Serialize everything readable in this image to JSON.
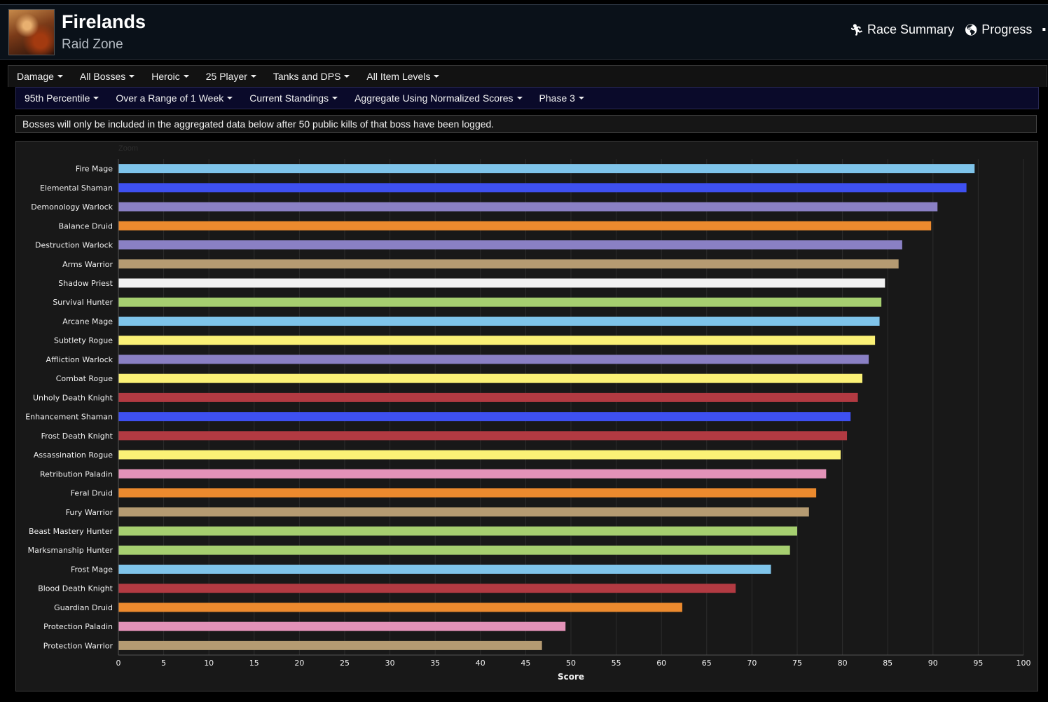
{
  "header": {
    "title": "Firelands",
    "subtitle": "Raid Zone",
    "links": [
      {
        "label": "Race Summary",
        "icon": "running-man-icon"
      },
      {
        "label": "Progress",
        "icon": "globe-icon"
      }
    ]
  },
  "filters_row1": [
    "Damage",
    "All Bosses",
    "Heroic",
    "25 Player",
    "Tanks and DPS",
    "All Item Levels"
  ],
  "filters_row2": [
    "95th Percentile",
    "Over a Range of 1 Week",
    "Current Standings",
    "Aggregate Using Normalized Scores",
    "Phase 3"
  ],
  "notice": "Bosses will only be included in the aggregated data below after 50 public kills of that boss have been logged.",
  "zoom_label": "Zoom",
  "chart_data": {
    "type": "bar",
    "orientation": "horizontal",
    "xlabel": "Score",
    "ylabel": "",
    "xlim": [
      0,
      100
    ],
    "xticks": [
      0,
      5,
      10,
      15,
      20,
      25,
      30,
      35,
      40,
      45,
      50,
      55,
      60,
      65,
      70,
      75,
      80,
      85,
      90,
      95,
      100
    ],
    "grid": "vertical",
    "categories": [
      "Fire Mage",
      "Elemental Shaman",
      "Demonology Warlock",
      "Balance Druid",
      "Destruction Warlock",
      "Arms Warrior",
      "Shadow Priest",
      "Survival Hunter",
      "Arcane Mage",
      "Subtlety Rogue",
      "Affliction Warlock",
      "Combat Rogue",
      "Unholy Death Knight",
      "Enhancement Shaman",
      "Frost Death Knight",
      "Assassination Rogue",
      "Retribution Paladin",
      "Feral Druid",
      "Fury Warrior",
      "Beast Mastery Hunter",
      "Marksmanship Hunter",
      "Frost Mage",
      "Blood Death Knight",
      "Guardian Druid",
      "Protection Paladin",
      "Protection Warrior"
    ],
    "values": [
      94.6,
      93.7,
      90.5,
      89.8,
      86.6,
      86.2,
      84.7,
      84.3,
      84.1,
      83.6,
      82.9,
      82.2,
      81.7,
      80.9,
      80.5,
      79.8,
      78.2,
      77.1,
      76.3,
      75.0,
      74.2,
      72.1,
      68.2,
      62.3,
      49.4,
      46.8
    ],
    "colors": [
      "#7fc4ea",
      "#3e50f0",
      "#8a80c4",
      "#ec8a2e",
      "#8a80c4",
      "#b59b72",
      "#f2f2f2",
      "#a6cf70",
      "#7fc4ea",
      "#fbf176",
      "#8a80c4",
      "#fbf176",
      "#b23a42",
      "#3e50f0",
      "#b23a42",
      "#fbf176",
      "#e392b8",
      "#ec8a2e",
      "#b59b72",
      "#a6cf70",
      "#a6cf70",
      "#7fc4ea",
      "#b23a42",
      "#ec8a2e",
      "#e392b8",
      "#b59b72"
    ]
  }
}
